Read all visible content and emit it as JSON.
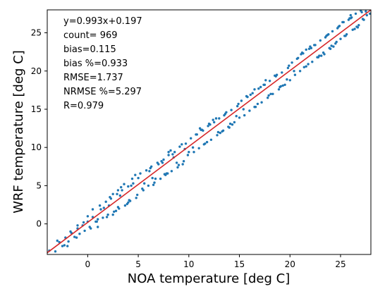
{
  "chart_data": {
    "type": "scatter",
    "title": "",
    "xlabel": "NOA temperature [deg C]",
    "ylabel": "WRF temperature [deg C]",
    "xlim": [
      -4,
      28
    ],
    "ylim": [
      -4,
      28
    ],
    "xticks": [
      0,
      5,
      10,
      15,
      20,
      25
    ],
    "yticks": [
      0,
      5,
      10,
      15,
      20,
      25
    ],
    "grid": false,
    "stats": [
      "y=0.993x+0.197",
      "count= 969",
      "bias=0.115",
      "bias %=0.933",
      "RMSE=1.737",
      "NRMSE %=5.297",
      "R=0.979"
    ],
    "fit": {
      "slope": 0.993,
      "intercept": 0.197,
      "color": "#d62728"
    },
    "point_color": "#1f77b4",
    "series": [
      {
        "x": [
          -3.8,
          -3.2,
          -2.8,
          -2.5,
          -2.2,
          -1.9,
          -1.6,
          -1.3,
          -1.0,
          -0.8,
          -0.5,
          -0.3,
          0.0,
          0.2,
          0.5,
          -3.0,
          -2.3,
          -1.7,
          -1.1,
          -0.4,
          0.3,
          -2.0,
          -1.0,
          0.0,
          0.8,
          0.5,
          0.9,
          1.2,
          1.5,
          1.8,
          2.0,
          2.3,
          2.6,
          2.9,
          3.1,
          3.4,
          3.7,
          4.0,
          4.2,
          4.5,
          4.8,
          5.0,
          1.0,
          1.6,
          2.2,
          2.8,
          3.3,
          3.9,
          4.4,
          4.9,
          1.3,
          1.9,
          2.5,
          3.0,
          3.6,
          4.1,
          4.7,
          2.1,
          3.2,
          4.3,
          5.2,
          5.5,
          5.8,
          6.0,
          6.3,
          6.6,
          6.9,
          7.2,
          7.5,
          7.7,
          8.0,
          8.3,
          8.6,
          8.9,
          9.1,
          9.4,
          9.7,
          10.0,
          5.6,
          6.1,
          6.7,
          7.3,
          7.9,
          8.4,
          9.0,
          9.6,
          5.4,
          6.4,
          7.0,
          7.6,
          8.2,
          8.8,
          9.3,
          9.9,
          6.2,
          7.4,
          8.5,
          10.2,
          10.5,
          10.8,
          11.0,
          11.3,
          11.6,
          11.9,
          12.2,
          12.5,
          12.8,
          13.0,
          13.3,
          13.6,
          13.9,
          14.2,
          14.5,
          14.8,
          15.0,
          10.4,
          11.1,
          11.8,
          12.4,
          13.1,
          13.7,
          14.3,
          14.9,
          10.7,
          11.5,
          12.1,
          12.9,
          13.5,
          14.1,
          14.7,
          11.4,
          12.7,
          15.2,
          15.5,
          15.8,
          16.0,
          16.3,
          16.6,
          16.9,
          17.2,
          17.5,
          17.8,
          18.0,
          18.3,
          18.6,
          18.9,
          19.2,
          19.5,
          19.8,
          20.0,
          15.4,
          16.1,
          16.8,
          17.4,
          18.1,
          18.7,
          19.3,
          19.9,
          15.7,
          16.5,
          17.1,
          17.9,
          18.5,
          19.1,
          19.7,
          20.2,
          20.5,
          20.8,
          21.0,
          21.3,
          21.6,
          21.9,
          22.2,
          22.5,
          22.8,
          23.0,
          23.3,
          23.6,
          23.9,
          24.2,
          24.5,
          24.8,
          25.0,
          25.3,
          25.6,
          25.9,
          26.2,
          26.5,
          26.8,
          27.0,
          27.3,
          27.6,
          27.9,
          20.4,
          21.1,
          21.8,
          22.4,
          23.1,
          23.7,
          24.3,
          24.9,
          25.5,
          26.1,
          26.7,
          27.2,
          20.7,
          21.4,
          22.1,
          22.9,
          23.5,
          24.1,
          24.7,
          25.4,
          26.0,
          26.6,
          27.1,
          21.6,
          22.7,
          23.8,
          24.6,
          25.8,
          26.4,
          3.0,
          4.0,
          6.5,
          8.0,
          9.5,
          12.0,
          14.0,
          16.5,
          19.0,
          22.0,
          24.0,
          26.0,
          1.0,
          2.5,
          7.8,
          11.2,
          13.4,
          17.6,
          21.2,
          23.4,
          25.2,
          27.5
        ],
        "y": [
          -3.5,
          -3.6,
          -2.4,
          -2.9,
          -1.8,
          -2.3,
          -1.2,
          -1.7,
          -0.6,
          -1.3,
          -0.2,
          -0.9,
          0.3,
          -0.4,
          0.9,
          -2.2,
          -2.8,
          -1.0,
          -1.8,
          0.2,
          -0.6,
          -2.9,
          -0.2,
          1.0,
          0.3,
          1.9,
          0.3,
          2.4,
          0.8,
          2.9,
          1.2,
          3.3,
          1.6,
          3.9,
          2.0,
          4.4,
          2.4,
          4.9,
          3.0,
          5.3,
          3.4,
          6.0,
          0.6,
          2.1,
          3.5,
          1.7,
          4.8,
          2.6,
          5.9,
          3.8,
          1.9,
          0.9,
          3.9,
          2.2,
          5.2,
          3.1,
          6.4,
          2.4,
          3.7,
          5.0,
          6.6,
          4.4,
          7.0,
          5.0,
          7.5,
          5.4,
          8.0,
          5.9,
          8.4,
          6.4,
          9.0,
          6.9,
          9.4,
          7.4,
          10.1,
          7.8,
          10.5,
          9.4,
          5.3,
          6.9,
          5.9,
          8.2,
          6.6,
          9.1,
          7.7,
          9.8,
          4.6,
          6.0,
          7.8,
          6.5,
          9.6,
          8.0,
          10.4,
          9.0,
          7.3,
          8.0,
          8.7,
          11.2,
          9.4,
          11.7,
          9.9,
          12.3,
          10.5,
          12.8,
          11.0,
          13.3,
          11.6,
          13.8,
          12.1,
          14.4,
          12.7,
          14.9,
          13.3,
          15.4,
          13.9,
          10.0,
          12.5,
          10.7,
          13.6,
          11.9,
          14.6,
          13.0,
          15.7,
          11.7,
          10.4,
          13.0,
          12.0,
          14.2,
          13.1,
          14.1,
          12.2,
          13.8,
          16.1,
          14.2,
          16.6,
          14.8,
          17.1,
          15.3,
          17.7,
          15.9,
          18.2,
          16.5,
          18.7,
          17.0,
          19.3,
          17.6,
          19.8,
          18.2,
          20.4,
          18.8,
          15.0,
          16.9,
          15.7,
          18.2,
          17.0,
          19.5,
          18.1,
          20.7,
          16.7,
          15.3,
          17.9,
          16.8,
          19.4,
          18.0,
          18.9,
          21.1,
          19.5,
          21.7,
          20.0,
          22.3,
          20.6,
          22.9,
          21.2,
          23.4,
          21.8,
          24.0,
          22.4,
          24.6,
          23.0,
          25.2,
          23.6,
          25.8,
          24.2,
          26.4,
          24.8,
          26.9,
          25.4,
          27.5,
          26.0,
          27.9,
          26.7,
          27.3,
          27.5,
          20.0,
          22.2,
          20.9,
          23.4,
          22.0,
          24.7,
          23.2,
          25.9,
          24.6,
          27.0,
          25.7,
          26.8,
          21.6,
          20.5,
          23.0,
          22.0,
          24.4,
          23.3,
          25.6,
          24.6,
          26.9,
          25.8,
          27.7,
          22.8,
          21.8,
          24.8,
          23.8,
          26.7,
          25.5,
          4.4,
          2.8,
          5.1,
          9.4,
          8.2,
          13.1,
          12.6,
          17.6,
          17.9,
          23.2,
          22.9,
          27.3,
          -0.4,
          1.2,
          6.6,
          12.3,
          12.2,
          18.8,
          22.4,
          22.2,
          26.4,
          27.8
        ]
      }
    ]
  }
}
